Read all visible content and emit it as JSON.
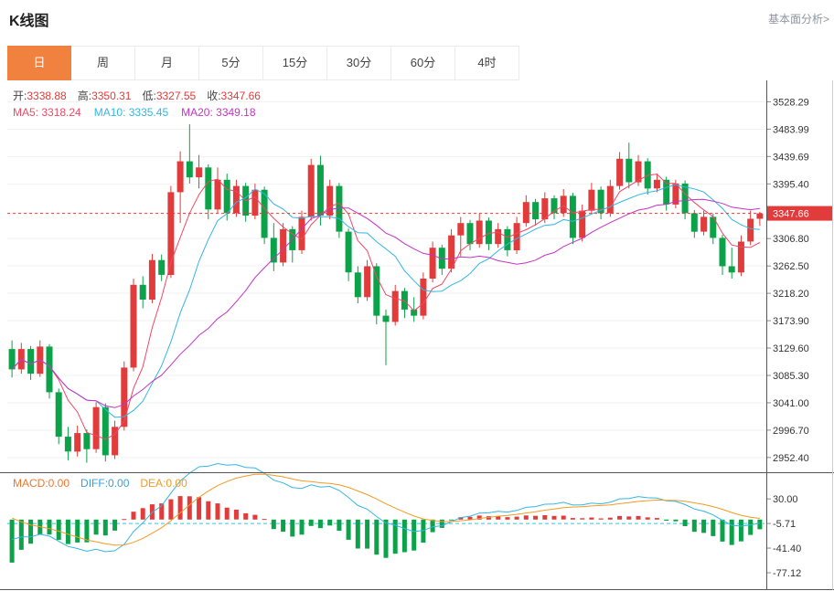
{
  "header": {
    "title": "K线图",
    "link": "基本面分析>"
  },
  "tabs": [
    {
      "label": "日",
      "active": true
    },
    {
      "label": "周",
      "active": false
    },
    {
      "label": "月",
      "active": false
    },
    {
      "label": "5分",
      "active": false
    },
    {
      "label": "15分",
      "active": false
    },
    {
      "label": "30分",
      "active": false
    },
    {
      "label": "60分",
      "active": false
    },
    {
      "label": "4时",
      "active": false
    }
  ],
  "overlay": {
    "ohlc": [
      {
        "name": "open",
        "label": "开:",
        "value": "3338.88"
      },
      {
        "name": "high",
        "label": "高:",
        "value": "3350.31"
      },
      {
        "name": "low",
        "label": "低:",
        "value": "3327.55"
      },
      {
        "name": "close",
        "label": "收:",
        "value": "3347.66"
      }
    ],
    "ma": [
      {
        "name": "ma5",
        "label": "MA5:",
        "value": "3318.24",
        "color": "#ef4866"
      },
      {
        "name": "ma10",
        "label": "MA10:",
        "value": "3335.45",
        "color": "#33b6e3"
      },
      {
        "name": "ma20",
        "label": "MA20:",
        "value": "3349.18",
        "color": "#c433c4"
      }
    ],
    "macd": [
      {
        "name": "macd",
        "label": "MACD:",
        "value": "0.00",
        "color": "#f0752c"
      },
      {
        "name": "diff",
        "label": "DIFF:",
        "value": "0.00",
        "color": "#35a0e0"
      },
      {
        "name": "dea",
        "label": "DEA:",
        "value": "0.00",
        "color": "#f59a23"
      }
    ]
  },
  "chart_data": {
    "type": "candlestick",
    "title": "K线图",
    "interval_selected": "日",
    "last_price": 3347.66,
    "last_price_label": "3347.66",
    "price_axis": {
      "min": 2930,
      "max": 3560,
      "labels": [
        "3528.29",
        "3483.99",
        "3439.69",
        "3395.40",
        "3306.80",
        "3262.50",
        "3218.20",
        "3173.90",
        "3129.60",
        "3085.30",
        "3041.00",
        "2996.70",
        "2952.40"
      ]
    },
    "macd_axis": {
      "min": -97,
      "max": 62,
      "labels": [
        "30.00",
        "-5.71",
        "-41.40",
        "-77.12"
      ],
      "dashed_level": "-5.71"
    },
    "colors": {
      "up": "#e23b3b",
      "down": "#0ba24a",
      "ma5": "#ef4866",
      "ma10": "#33b6e3",
      "ma20": "#c433c4",
      "diff": "#33b6e3",
      "dea": "#f59a23",
      "price_line": "#e23b3b",
      "macd_dashed": "#2fc3ea"
    },
    "candles": [
      [
        3128,
        3142,
        3082,
        3095
      ],
      [
        3095,
        3138,
        3088,
        3128
      ],
      [
        3128,
        3133,
        3078,
        3088
      ],
      [
        3088,
        3142,
        3083,
        3132
      ],
      [
        3132,
        3136,
        3048,
        3058
      ],
      [
        3058,
        3064,
        2974,
        2986
      ],
      [
        2986,
        3002,
        2948,
        2962
      ],
      [
        2962,
        3004,
        2954,
        2992
      ],
      [
        2992,
        2998,
        2944,
        2966
      ],
      [
        2966,
        3042,
        2960,
        3034
      ],
      [
        3034,
        3040,
        2946,
        2956
      ],
      [
        2956,
        3012,
        2950,
        3002
      ],
      [
        3002,
        3108,
        2996,
        3098
      ],
      [
        3098,
        3242,
        3092,
        3232
      ],
      [
        3232,
        3246,
        3194,
        3208
      ],
      [
        3208,
        3282,
        3202,
        3272
      ],
      [
        3272,
        3281,
        3238,
        3248
      ],
      [
        3248,
        3392,
        3243,
        3382
      ],
      [
        3382,
        3448,
        3332,
        3432
      ],
      [
        3432,
        3492,
        3396,
        3406
      ],
      [
        3406,
        3442,
        3388,
        3422
      ],
      [
        3422,
        3427,
        3338,
        3354
      ],
      [
        3354,
        3422,
        3348,
        3402
      ],
      [
        3402,
        3412,
        3336,
        3348
      ],
      [
        3348,
        3402,
        3342,
        3392
      ],
      [
        3392,
        3397,
        3334,
        3344
      ],
      [
        3344,
        3396,
        3338,
        3386
      ],
      [
        3386,
        3391,
        3298,
        3308
      ],
      [
        3308,
        3332,
        3254,
        3268
      ],
      [
        3268,
        3332,
        3262,
        3322
      ],
      [
        3322,
        3327,
        3268,
        3288
      ],
      [
        3288,
        3352,
        3282,
        3342
      ],
      [
        3342,
        3436,
        3336,
        3426
      ],
      [
        3426,
        3441,
        3328,
        3344
      ],
      [
        3344,
        3402,
        3338,
        3392
      ],
      [
        3392,
        3397,
        3308,
        3318
      ],
      [
        3318,
        3323,
        3238,
        3252
      ],
      [
        3252,
        3262,
        3202,
        3212
      ],
      [
        3212,
        3272,
        3206,
        3262
      ],
      [
        3262,
        3267,
        3168,
        3182
      ],
      [
        3182,
        3192,
        3102,
        3172
      ],
      [
        3172,
        3232,
        3166,
        3222
      ],
      [
        3222,
        3227,
        3178,
        3192
      ],
      [
        3192,
        3212,
        3172,
        3182
      ],
      [
        3182,
        3252,
        3176,
        3242
      ],
      [
        3242,
        3302,
        3236,
        3292
      ],
      [
        3292,
        3297,
        3248,
        3258
      ],
      [
        3258,
        3322,
        3252,
        3312
      ],
      [
        3312,
        3342,
        3278,
        3332
      ],
      [
        3332,
        3337,
        3288,
        3298
      ],
      [
        3298,
        3347,
        3292,
        3336
      ],
      [
        3336,
        3341,
        3288,
        3298
      ],
      [
        3298,
        3332,
        3292,
        3322
      ],
      [
        3322,
        3327,
        3278,
        3288
      ],
      [
        3288,
        3342,
        3282,
        3332
      ],
      [
        3332,
        3377,
        3326,
        3366
      ],
      [
        3366,
        3371,
        3328,
        3338
      ],
      [
        3338,
        3382,
        3332,
        3372
      ],
      [
        3372,
        3377,
        3338,
        3348
      ],
      [
        3348,
        3387,
        3342,
        3376
      ],
      [
        3376,
        3381,
        3298,
        3308
      ],
      [
        3308,
        3362,
        3302,
        3352
      ],
      [
        3352,
        3397,
        3346,
        3386
      ],
      [
        3386,
        3391,
        3338,
        3348
      ],
      [
        3348,
        3402,
        3342,
        3392
      ],
      [
        3392,
        3447,
        3386,
        3436
      ],
      [
        3436,
        3462,
        3388,
        3398
      ],
      [
        3398,
        3442,
        3392,
        3432
      ],
      [
        3432,
        3437,
        3378,
        3388
      ],
      [
        3388,
        3412,
        3382,
        3402
      ],
      [
        3402,
        3407,
        3352,
        3362
      ],
      [
        3362,
        3402,
        3356,
        3396
      ],
      [
        3396,
        3401,
        3338,
        3348
      ],
      [
        3348,
        3353,
        3308,
        3318
      ],
      [
        3318,
        3352,
        3312,
        3342
      ],
      [
        3342,
        3347,
        3298,
        3308
      ],
      [
        3308,
        3313,
        3248,
        3262
      ],
      [
        3262,
        3292,
        3242,
        3252
      ],
      [
        3252,
        3312,
        3246,
        3302
      ],
      [
        3302,
        3352,
        3296,
        3338.88
      ],
      [
        3338.88,
        3350.31,
        3327.55,
        3347.66
      ]
    ]
  }
}
